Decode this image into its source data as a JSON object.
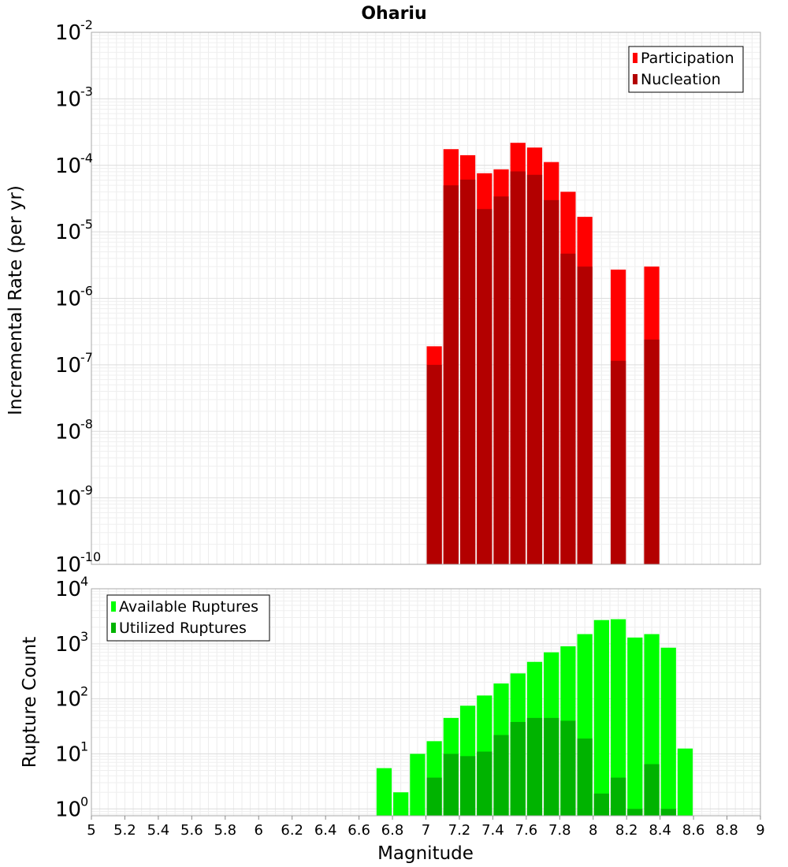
{
  "chart_data": {
    "title": "Ohariu",
    "type": "bar",
    "xlabel": "Magnitude",
    "xlim": [
      5,
      9
    ],
    "x_ticks": [
      "5",
      "5.2",
      "5.4",
      "5.6",
      "5.8",
      "6",
      "6.2",
      "6.4",
      "6.6",
      "6.8",
      "7",
      "7.2",
      "7.4",
      "7.6",
      "7.8",
      "8",
      "8.2",
      "8.4",
      "8.6",
      "8.8",
      "9"
    ],
    "panels": [
      {
        "type": "bar",
        "ylabel": "Incremental Rate (per yr)",
        "y_scale": "log",
        "ylim": [
          1e-10,
          0.01
        ],
        "y_tick_exponents": [
          "-10",
          "-9",
          "-8",
          "-7",
          "-6",
          "-5",
          "-4",
          "-3",
          "-2"
        ],
        "legend_position": "top-right",
        "x": [
          7.05,
          7.15,
          7.25,
          7.35,
          7.45,
          7.55,
          7.65,
          7.75,
          7.85,
          7.95,
          8.05,
          8.15,
          8.25,
          8.35
        ],
        "series": [
          {
            "name": "Participation",
            "color": "#ff0000",
            "values": [
              1.9e-07,
              0.000175,
              0.000142,
              7.6e-05,
              8.7e-05,
              0.000218,
              0.000185,
              0.000112,
              4e-05,
              1.68e-05,
              null,
              2.7e-06,
              null,
              3e-06
            ]
          },
          {
            "name": "Nucleation",
            "color": "#b30000",
            "values": [
              1e-07,
              5e-05,
              6.1e-05,
              2.2e-05,
              3.4e-05,
              8.1e-05,
              7.2e-05,
              3e-05,
              4.7e-06,
              3e-06,
              null,
              1.15e-07,
              null,
              2.4e-07
            ]
          }
        ]
      },
      {
        "type": "bar",
        "ylabel": "Rupture Count",
        "y_scale": "log",
        "ylim": [
          0.75,
          10000
        ],
        "y_tick_exponents": [
          "0",
          "1",
          "2",
          "3",
          "4"
        ],
        "legend_position": "top-left",
        "x": [
          6.75,
          6.85,
          6.95,
          7.05,
          7.15,
          7.25,
          7.35,
          7.45,
          7.55,
          7.65,
          7.75,
          7.85,
          7.95,
          8.05,
          8.15,
          8.25,
          8.35,
          8.45,
          8.55
        ],
        "series": [
          {
            "name": "Available Ruptures",
            "color": "#00ff00",
            "values": [
              5.5,
              2,
              10,
              17,
              45,
              75,
              115,
              190,
              290,
              470,
              700,
              900,
              1500,
              2700,
              2800,
              1300,
              1500,
              850,
              12.5
            ]
          },
          {
            "name": "Utilized Ruptures",
            "color": "#00b300",
            "values": [
              null,
              null,
              null,
              3.7,
              10,
              9.1,
              11,
              22,
              38,
              45,
              45,
              40,
              19,
              1.9,
              3.7,
              1,
              6.5,
              1,
              null
            ]
          }
        ]
      }
    ]
  }
}
